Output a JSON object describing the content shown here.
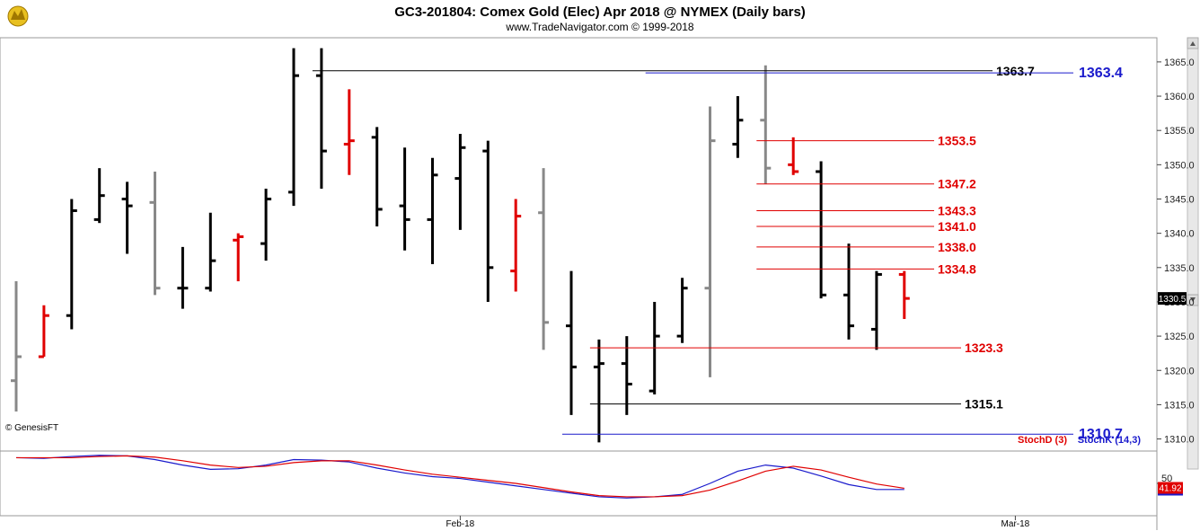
{
  "chart_data": {
    "type": "ohlc",
    "title": "GC3-201804:  Comex Gold (Elec) Apr 2018 @ NYMEX  (Daily bars)",
    "subtitle": "www.TradeNavigator.com © 1999-2018",
    "watermark": "© GenesisFT",
    "price_ylim": [
      1308.5,
      1368
    ],
    "price_ticks": [
      "1365.0",
      "1360.0",
      "1355.0",
      "1350.0",
      "1345.0",
      "1340.0",
      "1335.0",
      "1330.0",
      "1325.0",
      "1320.0",
      "1315.0",
      "1310.0"
    ],
    "last_price": "1330.5",
    "x_labels": [
      {
        "label": "Feb-18",
        "bar": 16
      },
      {
        "label": "Mar-18",
        "bar": 36
      }
    ],
    "colors": {
      "up": "#000000",
      "down": "#e00000",
      "neutral": "#888888",
      "blue_line": "#1a1acc",
      "red_line": "#e00000",
      "black_line": "#000000"
    },
    "bars": [
      {
        "o": 1318.5,
        "h": 1333,
        "l": 1314,
        "c": 1322,
        "color": "neutral"
      },
      {
        "o": 1322,
        "h": 1329.5,
        "l": 1322,
        "c": 1328,
        "color": "down"
      },
      {
        "o": 1328,
        "h": 1345,
        "l": 1326,
        "c": 1343.3,
        "color": "up"
      },
      {
        "o": 1342,
        "h": 1349.5,
        "l": 1341.5,
        "c": 1345.5,
        "color": "up"
      },
      {
        "o": 1345,
        "h": 1347.5,
        "l": 1337,
        "c": 1344,
        "color": "up"
      },
      {
        "o": 1344.5,
        "h": 1349,
        "l": 1331,
        "c": 1332,
        "color": "neutral"
      },
      {
        "o": 1332,
        "h": 1338,
        "l": 1329,
        "c": 1332,
        "color": "up"
      },
      {
        "o": 1332,
        "h": 1343,
        "l": 1331.5,
        "c": 1336,
        "color": "up"
      },
      {
        "o": 1339,
        "h": 1340,
        "l": 1333,
        "c": 1339.5,
        "color": "down"
      },
      {
        "o": 1338.5,
        "h": 1346.5,
        "l": 1336,
        "c": 1345,
        "color": "up"
      },
      {
        "o": 1346,
        "h": 1367,
        "l": 1344,
        "c": 1363,
        "color": "up"
      },
      {
        "o": 1363,
        "h": 1367,
        "l": 1346.5,
        "c": 1352,
        "color": "up"
      },
      {
        "o": 1353,
        "h": 1361,
        "l": 1348.5,
        "c": 1353.5,
        "color": "down"
      },
      {
        "o": 1354,
        "h": 1355.5,
        "l": 1341,
        "c": 1343.5,
        "color": "up"
      },
      {
        "o": 1344,
        "h": 1352.5,
        "l": 1337.5,
        "c": 1342,
        "color": "up"
      },
      {
        "o": 1342,
        "h": 1351,
        "l": 1335.5,
        "c": 1348.5,
        "color": "up"
      },
      {
        "o": 1348,
        "h": 1354.5,
        "l": 1340.5,
        "c": 1352.5,
        "color": "up"
      },
      {
        "o": 1352,
        "h": 1353.5,
        "l": 1330,
        "c": 1335,
        "color": "up"
      },
      {
        "o": 1334.5,
        "h": 1345,
        "l": 1331.5,
        "c": 1342.5,
        "color": "down"
      },
      {
        "o": 1343,
        "h": 1349.5,
        "l": 1323,
        "c": 1327,
        "color": "neutral"
      },
      {
        "o": 1326.5,
        "h": 1334.5,
        "l": 1313.5,
        "c": 1320.5,
        "color": "up"
      },
      {
        "o": 1320.5,
        "h": 1324.5,
        "l": 1309.5,
        "c": 1321,
        "color": "up"
      },
      {
        "o": 1321,
        "h": 1325,
        "l": 1313.5,
        "c": 1318,
        "color": "up"
      },
      {
        "o": 1317,
        "h": 1330,
        "l": 1316.5,
        "c": 1325,
        "color": "up"
      },
      {
        "o": 1325,
        "h": 1333.5,
        "l": 1324,
        "c": 1332,
        "color": "up"
      },
      {
        "o": 1332,
        "h": 1358.5,
        "l": 1319,
        "c": 1353.5,
        "color": "neutral"
      },
      {
        "o": 1353,
        "h": 1360,
        "l": 1351,
        "c": 1356.5,
        "color": "up"
      },
      {
        "o": 1356.5,
        "h": 1364.5,
        "l": 1347.2,
        "c": 1349.5,
        "color": "neutral"
      },
      {
        "o": 1350,
        "h": 1354,
        "l": 1348.5,
        "c": 1349,
        "color": "down"
      },
      {
        "o": 1349,
        "h": 1350.5,
        "l": 1330.5,
        "c": 1331,
        "color": "up"
      },
      {
        "o": 1331,
        "h": 1338.5,
        "l": 1324.5,
        "c": 1326.5,
        "color": "up"
      },
      {
        "o": 1326,
        "h": 1334.5,
        "l": 1323,
        "c": 1334,
        "color": "up"
      },
      {
        "o": 1334,
        "h": 1334.5,
        "l": 1327.5,
        "c": 1330.5,
        "color": "down"
      }
    ],
    "levels": [
      {
        "value": "1363.7",
        "price": 1363.7,
        "color": "black_line",
        "from_bar": 11,
        "big": false
      },
      {
        "value": "1363.4",
        "price": 1363.4,
        "color": "blue_line",
        "from_bar": 23,
        "big": true
      },
      {
        "value": "1353.5",
        "price": 1353.5,
        "color": "red_line",
        "from_bar": 27,
        "big": false
      },
      {
        "value": "1347.2",
        "price": 1347.2,
        "color": "red_line",
        "from_bar": 27,
        "big": false
      },
      {
        "value": "1343.3",
        "price": 1343.3,
        "color": "red_line",
        "from_bar": 27,
        "big": false
      },
      {
        "value": "1341.0",
        "price": 1341.0,
        "color": "red_line",
        "from_bar": 27,
        "big": false
      },
      {
        "value": "1338.0",
        "price": 1338.0,
        "color": "red_line",
        "from_bar": 27,
        "big": false
      },
      {
        "value": "1334.8",
        "price": 1334.8,
        "color": "red_line",
        "from_bar": 27,
        "big": false
      },
      {
        "value": "1323.3",
        "price": 1323.3,
        "color": "red_line",
        "from_bar": 21,
        "big": false
      },
      {
        "value": "1315.1",
        "price": 1315.1,
        "color": "black_line",
        "from_bar": 21,
        "big": false
      },
      {
        "value": "1310.7",
        "price": 1310.7,
        "color": "blue_line",
        "from_bar": 20,
        "big": true
      }
    ],
    "stoch": {
      "ylim": [
        0,
        100
      ],
      "tick": "50",
      "last_value": "41.92",
      "legend_d": "StochD (3)",
      "legend_k": "StochK (14,3)",
      "k": [
        92,
        91,
        94,
        96,
        95,
        89,
        80,
        73,
        74,
        80,
        89,
        88,
        85,
        75,
        67,
        61,
        58,
        52,
        46,
        40,
        34,
        28,
        26,
        28,
        32,
        50,
        70,
        80,
        75,
        62,
        48,
        40,
        40
      ],
      "d": [
        92,
        92,
        92,
        94,
        95,
        93,
        87,
        80,
        76,
        78,
        84,
        87,
        87,
        80,
        72,
        65,
        60,
        55,
        50,
        43,
        36,
        30,
        28,
        28,
        30,
        39,
        54,
        70,
        78,
        72,
        60,
        49,
        42
      ]
    }
  }
}
